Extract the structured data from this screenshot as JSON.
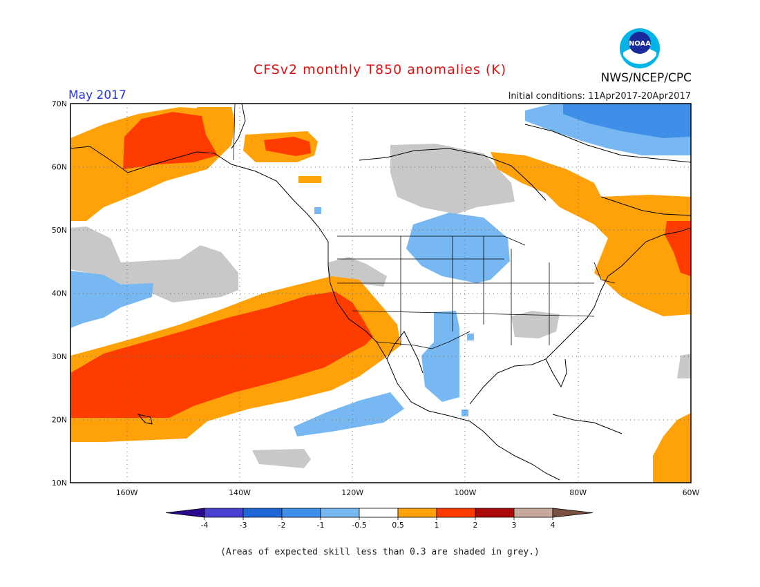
{
  "header": {
    "title": "CFSv2 monthly T850 anomalies (K)",
    "period": "May 2017",
    "initial_conditions": "Initial conditions: 11Apr2017-20Apr2017",
    "agency": "NWS/NCEP/CPC",
    "logo_text": "NOAA"
  },
  "map": {
    "lon_range": [
      -170,
      -60
    ],
    "lat_range": [
      10,
      70
    ],
    "lon_labels": [
      "160W",
      "140W",
      "120W",
      "100W",
      "80W",
      "60W"
    ],
    "lat_labels": [
      "10N",
      "20N",
      "30N",
      "40N",
      "50N",
      "60N",
      "70N"
    ],
    "shading_colors": {
      "lt_-4": "#2a0a8c",
      "-4_-3": "#4a3fcf",
      "-3_-2": "#1f66d6",
      "-2_-1": "#3f8fe8",
      "-1_-0.5": "#78b8f2",
      "-0.5_0.5": "#ffffff",
      "0.5_1": "#ffa20a",
      "1_2": "#ff3c00",
      "2_3": "#aa0a0a",
      "3_4": "#c8a89a",
      "gt_4": "#7a5040",
      "low_skill": "#c8c8c8"
    }
  },
  "colorbar": {
    "labels": [
      "-4",
      "-3",
      "-2",
      "-1",
      "-0.5",
      "0.5",
      "1",
      "2",
      "3",
      "4"
    ],
    "colors": [
      "#2a0a8c",
      "#4a3fcf",
      "#1f66d6",
      "#3f8fe8",
      "#78b8f2",
      "#ffffff",
      "#ffa20a",
      "#ff3c00",
      "#aa0a0a",
      "#c8a89a",
      "#7a5040"
    ]
  },
  "footnote": "(Areas of expected skill less than 0.3 are shaded in grey.)"
}
